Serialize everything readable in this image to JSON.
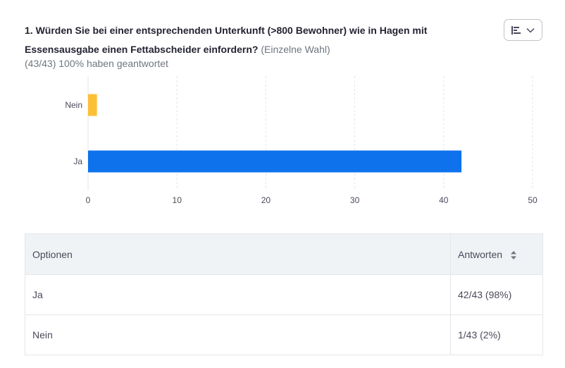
{
  "question": {
    "text": "1. Würden Sie bei einer entsprechenden Unterkunft (>800 Bewohner) wie in Hagen mit Essensausgabe einen Fettabscheider einfordern?",
    "type": "(Einzelne Wahl)",
    "summary": "(43/43) 100% haben geantwortet"
  },
  "toolbar": {
    "chart_toggle_icon": "bar-chart-icon",
    "dropdown_icon": "chevron-down-icon"
  },
  "colors": {
    "nein": "#fcc037",
    "ja": "#0e72ed",
    "grid": "#e3e3e3"
  },
  "chart_data": {
    "type": "bar",
    "orientation": "horizontal",
    "categories": [
      "Nein",
      "Ja"
    ],
    "values": [
      1,
      42
    ],
    "xlim": [
      0,
      50
    ],
    "xticks": [
      0,
      10,
      20,
      30,
      40,
      50
    ],
    "grid": true,
    "title": "",
    "xlabel": "",
    "ylabel": ""
  },
  "table": {
    "headers": {
      "option": "Optionen",
      "answers": "Antworten"
    },
    "rows": [
      {
        "option": "Ja",
        "answers": "42/43 (98%)"
      },
      {
        "option": "Nein",
        "answers": "1/43 (2%)"
      }
    ]
  }
}
